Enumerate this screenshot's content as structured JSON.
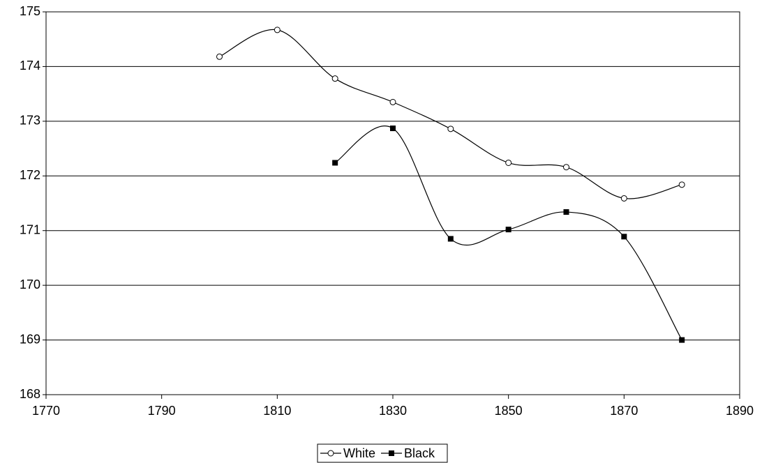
{
  "chart_data": {
    "type": "line",
    "x": [
      1800,
      1810,
      1820,
      1830,
      1840,
      1850,
      1860,
      1870,
      1880
    ],
    "series": [
      {
        "name": "White",
        "color": "#000000",
        "marker": "circle",
        "values": [
          174.18,
          174.67,
          173.78,
          173.35,
          172.86,
          172.24,
          172.16,
          171.59,
          171.84
        ]
      },
      {
        "name": "Black",
        "color": "#000000",
        "marker": "square",
        "values": [
          null,
          null,
          172.24,
          172.87,
          170.85,
          171.02,
          171.34,
          170.89,
          169.0
        ]
      }
    ],
    "xlim": [
      1770,
      1890
    ],
    "xticks": [
      1770,
      1790,
      1810,
      1830,
      1850,
      1870,
      1890
    ],
    "ylim": [
      168,
      175
    ],
    "yticks": [
      168,
      169,
      170,
      171,
      172,
      173,
      174,
      175
    ],
    "grid": true,
    "smooth": true,
    "legend": "bottom"
  }
}
